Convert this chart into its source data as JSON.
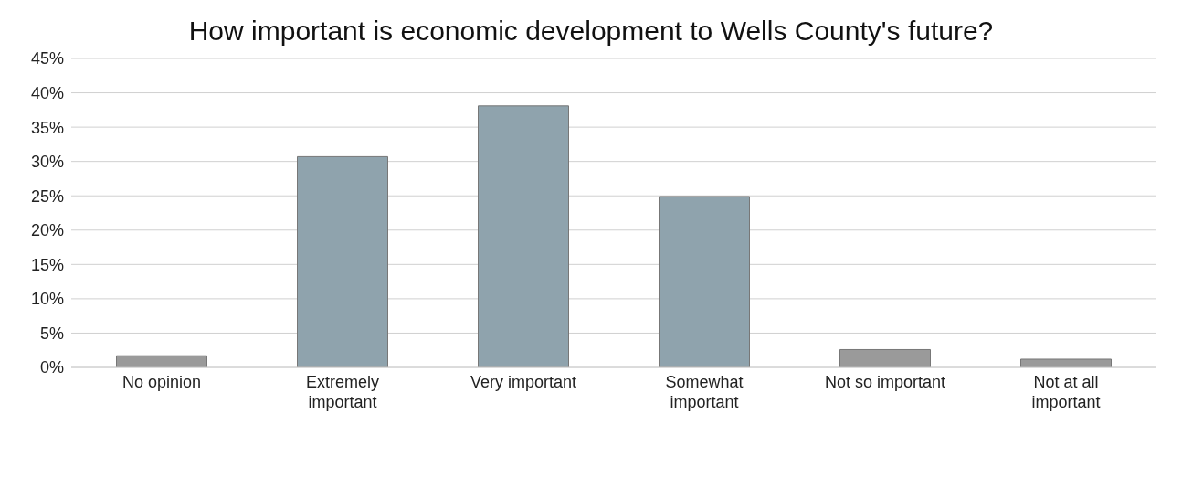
{
  "chart_data": {
    "type": "bar",
    "title": "How important is economic development to Wells County's future?",
    "categories": [
      "No opinion",
      "Extremely important",
      "Very important",
      "Somewhat important",
      "Not so important",
      "Not at all important"
    ],
    "values": [
      1.7,
      30.7,
      38.1,
      24.9,
      2.6,
      1.2
    ],
    "colors": [
      "#9a9a9a",
      "#8fa3ad",
      "#8fa3ad",
      "#8fa3ad",
      "#9a9a9a",
      "#9a9a9a"
    ],
    "ylim": [
      0,
      45
    ],
    "yticks": [
      {
        "value": 0,
        "label": "0%"
      },
      {
        "value": 5,
        "label": "5%"
      },
      {
        "value": 10,
        "label": "10%"
      },
      {
        "value": 15,
        "label": "15%"
      },
      {
        "value": 20,
        "label": "20%"
      },
      {
        "value": 25,
        "label": "25%"
      },
      {
        "value": 30,
        "label": "30%"
      },
      {
        "value": 35,
        "label": "35%"
      },
      {
        "value": 40,
        "label": "40%"
      },
      {
        "value": 45,
        "label": "45%"
      }
    ],
    "grid": "y"
  }
}
